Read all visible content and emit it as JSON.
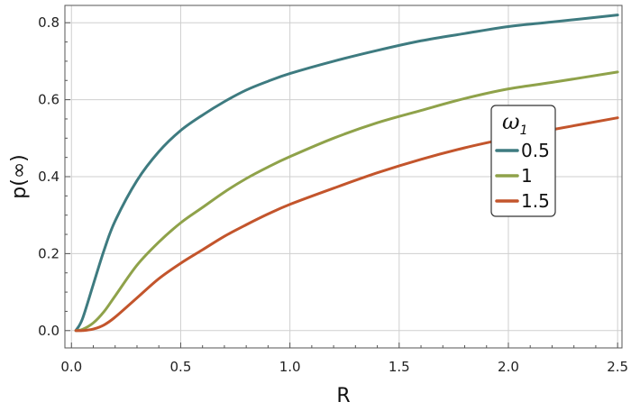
{
  "chart_data": {
    "type": "line",
    "xlabel": "R",
    "ylabel": "p(∞)",
    "xlim": [
      -0.03,
      2.52
    ],
    "ylim": [
      -0.045,
      0.845
    ],
    "xticks": [
      0.0,
      0.5,
      1.0,
      1.5,
      2.0,
      2.5
    ],
    "xtick_labels": [
      "0.0",
      "0.5",
      "1.0",
      "1.5",
      "2.0",
      "2.5"
    ],
    "yticks": [
      0.0,
      0.2,
      0.4,
      0.6,
      0.8
    ],
    "ytick_labels": [
      "0.0",
      "0.2",
      "0.4",
      "0.6",
      "0.8"
    ],
    "grid": true,
    "legend": {
      "title": "ω",
      "title_subscript": "1",
      "placement": "right"
    },
    "x": [
      0.02,
      0.05,
      0.1,
      0.15,
      0.2,
      0.3,
      0.4,
      0.5,
      0.6,
      0.7,
      0.8,
      0.9,
      1.0,
      1.2,
      1.4,
      1.6,
      1.8,
      2.0,
      2.2,
      2.5
    ],
    "series": [
      {
        "name": "0.5",
        "color": "#3e7b80",
        "values": [
          0.0,
          0.03,
          0.12,
          0.21,
          0.285,
          0.39,
          0.465,
          0.52,
          0.56,
          0.595,
          0.625,
          0.648,
          0.668,
          0.7,
          0.728,
          0.753,
          0.772,
          0.79,
          0.802,
          0.82
        ]
      },
      {
        "name": "1",
        "color": "#8fa24a",
        "values": [
          0.0,
          0.003,
          0.02,
          0.05,
          0.09,
          0.17,
          0.23,
          0.28,
          0.32,
          0.36,
          0.395,
          0.425,
          0.452,
          0.5,
          0.54,
          0.572,
          0.603,
          0.628,
          0.645,
          0.672
        ]
      },
      {
        "name": "1.5",
        "color": "#c3552c",
        "values": [
          0.0,
          0.0,
          0.004,
          0.015,
          0.035,
          0.085,
          0.135,
          0.175,
          0.21,
          0.245,
          0.275,
          0.303,
          0.328,
          0.37,
          0.41,
          0.445,
          0.475,
          0.5,
          0.522,
          0.553
        ]
      }
    ]
  }
}
